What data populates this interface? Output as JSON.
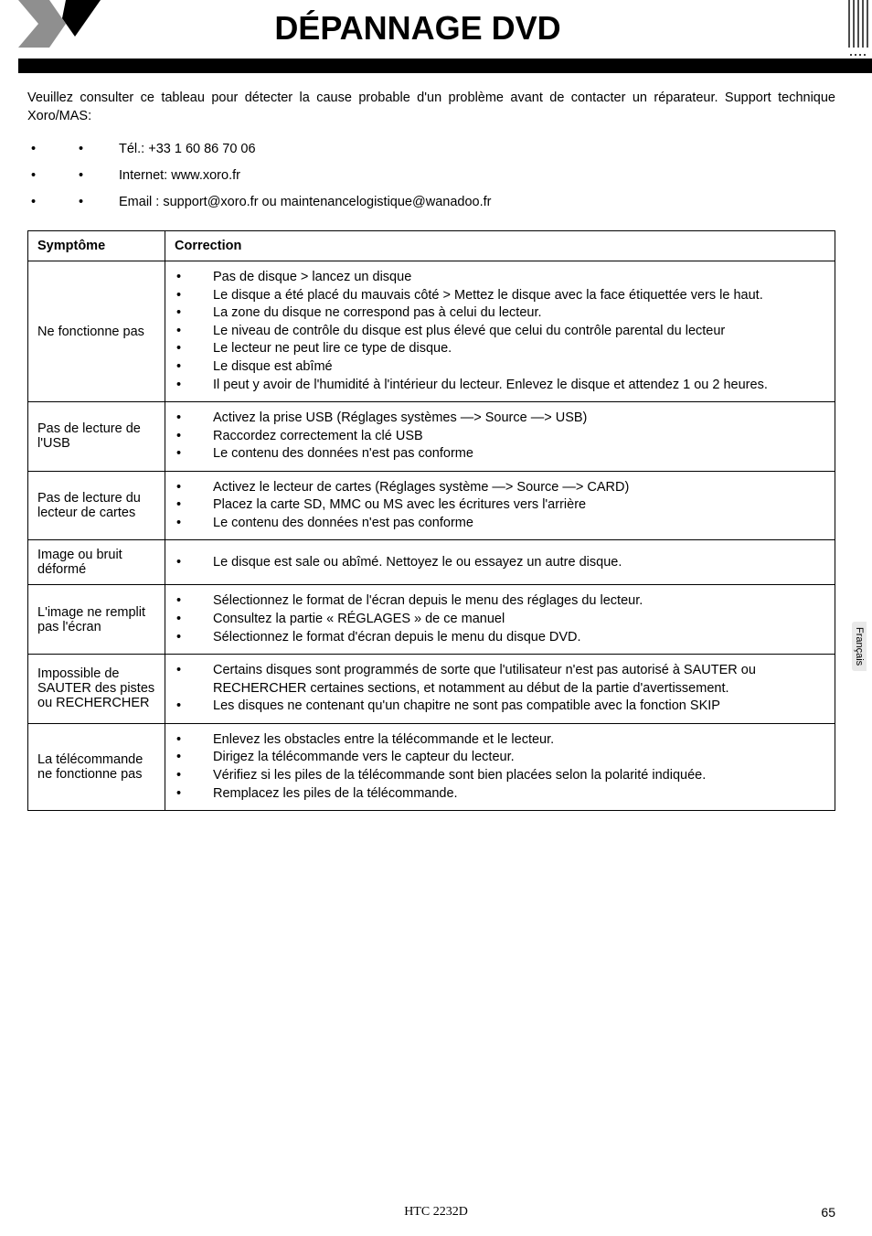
{
  "header": {
    "title": "DÉPANNAGE DVD"
  },
  "intro": "Veuillez consulter ce tableau pour détecter la cause probable d'un problème avant de contacter un réparateur. Support technique Xoro/MAS:",
  "contacts": [
    "Tél.: +33 1 60 86 70 06",
    "Internet: www.xoro.fr",
    "Email : support@xoro.fr ou maintenancelogistique@wanadoo.fr"
  ],
  "table": {
    "header_symptom": "Symptôme",
    "header_correction": "Correction",
    "rows": [
      {
        "symptom": "Ne fonctionne pas",
        "corrections": [
          "Pas de disque > lancez un disque",
          "Le disque a été placé du mauvais côté > Mettez le disque avec la face étiquettée vers le haut.",
          "La zone du disque ne correspond pas à celui du lecteur.",
          "Le niveau de contrôle du disque est plus élevé que celui du contrôle parental du lecteur",
          "Le lecteur ne peut lire ce type de disque.",
          "Le disque est abîmé",
          "Il peut y avoir de l'humidité à l'intérieur du lecteur. Enlevez le disque et attendez 1 ou 2 heures."
        ]
      },
      {
        "symptom": "Pas de lecture de l'USB",
        "corrections": [
          "Activez la prise USB (Réglages systèmes —> Source —> USB)",
          "Raccordez correctement la clé USB",
          "Le contenu des données n'est pas conforme"
        ]
      },
      {
        "symptom": "Pas de lecture du lecteur de cartes",
        "corrections": [
          "Activez le lecteur de cartes (Réglages système —> Source —> CARD)",
          "Placez la carte SD, MMC ou MS avec les écritures vers l'arrière",
          "Le contenu des données n'est pas conforme"
        ]
      },
      {
        "symptom": "Image ou bruit déformé",
        "corrections": [
          "Le disque est sale ou abîmé. Nettoyez le ou essayez un autre disque."
        ]
      },
      {
        "symptom": "L'image ne remplit pas l'écran",
        "corrections": [
          "Sélectionnez le format de l'écran depuis le menu des réglages du lecteur.",
          "Consultez la partie « RÉGLAGES » de ce manuel",
          "Sélectionnez le format d'écran depuis le menu du disque DVD."
        ]
      },
      {
        "symptom": "Impossible de SAUTER des pistes ou RECHERCHER",
        "corrections": [
          "Certains disques sont programmés de sorte que l'utilisateur n'est pas autorisé à SAUTER ou RECHERCHER certaines sections, et notamment au début de la partie d'avertissement.",
          "Les disques ne contenant qu'un chapitre ne sont pas compatible avec la fonction SKIP"
        ]
      },
      {
        "symptom": "La télécommande ne fonctionne pas",
        "corrections": [
          "Enlevez les obstacles entre la télécommande et le lecteur.",
          "Dirigez la télécommande vers le capteur du lecteur.",
          "Vérifiez si les piles de la télécommande sont bien placées selon la polarité indiquée.",
          "Remplacez les piles de la télécommande."
        ]
      }
    ]
  },
  "side_tab": "Français",
  "footer_model": "HTC 2232D",
  "footer_page": "65",
  "colors": {
    "text": "#000000",
    "bg": "#ffffff",
    "bar": "#000000",
    "tab_bg": "#e9e9e9",
    "logo_gray": "#8f8f8f"
  }
}
